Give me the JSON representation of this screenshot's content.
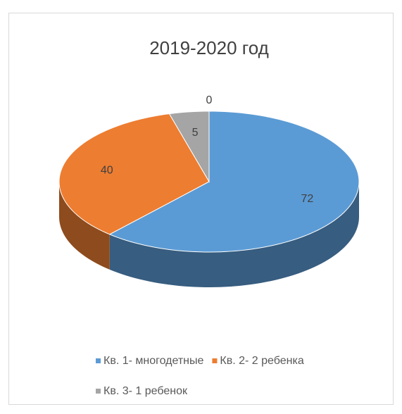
{
  "chart_data": {
    "type": "pie3d",
    "title": "2019-2020 год",
    "categories": [
      "Кв. 1- многодетные",
      "Кв. 2- 2 ребенка",
      "Кв. 3- 1 ребенок",
      null
    ],
    "values": [
      72,
      40,
      5,
      0
    ],
    "colors": [
      "#5b9bd5",
      "#ed7d31",
      "#a5a5a5",
      "#ffc000"
    ],
    "legend": "bottom"
  }
}
